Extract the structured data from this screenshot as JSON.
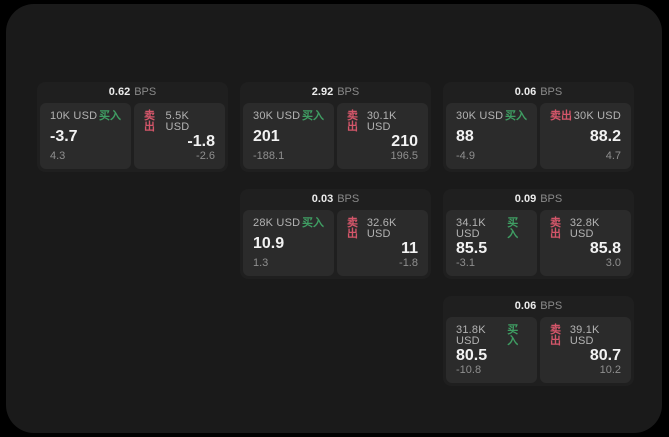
{
  "colors": {
    "buy_accent": "#3f9e63",
    "sell_accent": "#d4566a",
    "panel_bg": "#1a1a1a",
    "card_bg": "#1f1f1f",
    "tile_bg": "#2b2b2b"
  },
  "labels": {
    "buy": "买入",
    "sell": "卖出",
    "bps_unit": "BPS"
  },
  "cards": [
    {
      "row": 1,
      "col": 1,
      "bps": "0.62",
      "buy": {
        "amount": "10K USD",
        "price": "-3.7",
        "delta": "4.3"
      },
      "sell": {
        "amount": "5.5K USD",
        "price": "-1.8",
        "delta": "-2.6"
      }
    },
    {
      "row": 1,
      "col": 2,
      "bps": "2.92",
      "buy": {
        "amount": "30K USD",
        "price": "201",
        "delta": "-188.1"
      },
      "sell": {
        "amount": "30.1K USD",
        "price": "210",
        "delta": "196.5"
      }
    },
    {
      "row": 1,
      "col": 3,
      "bps": "0.06",
      "buy": {
        "amount": "30K USD",
        "price": "88",
        "delta": "-4.9"
      },
      "sell": {
        "amount": "30K USD",
        "price": "88.2",
        "delta": "4.7"
      }
    },
    {
      "row": 2,
      "col": 2,
      "bps": "0.03",
      "buy": {
        "amount": "28K USD",
        "price": "10.9",
        "delta": "1.3"
      },
      "sell": {
        "amount": "32.6K USD",
        "price": "11",
        "delta": "-1.8"
      }
    },
    {
      "row": 2,
      "col": 3,
      "bps": "0.09",
      "buy": {
        "amount": "34.1K USD",
        "price": "85.5",
        "delta": "-3.1"
      },
      "sell": {
        "amount": "32.8K USD",
        "price": "85.8",
        "delta": "3.0"
      }
    },
    {
      "row": 3,
      "col": 3,
      "bps": "0.06",
      "buy": {
        "amount": "31.8K USD",
        "price": "80.5",
        "delta": "-10.8"
      },
      "sell": {
        "amount": "39.1K USD",
        "price": "80.7",
        "delta": "10.2"
      }
    }
  ]
}
